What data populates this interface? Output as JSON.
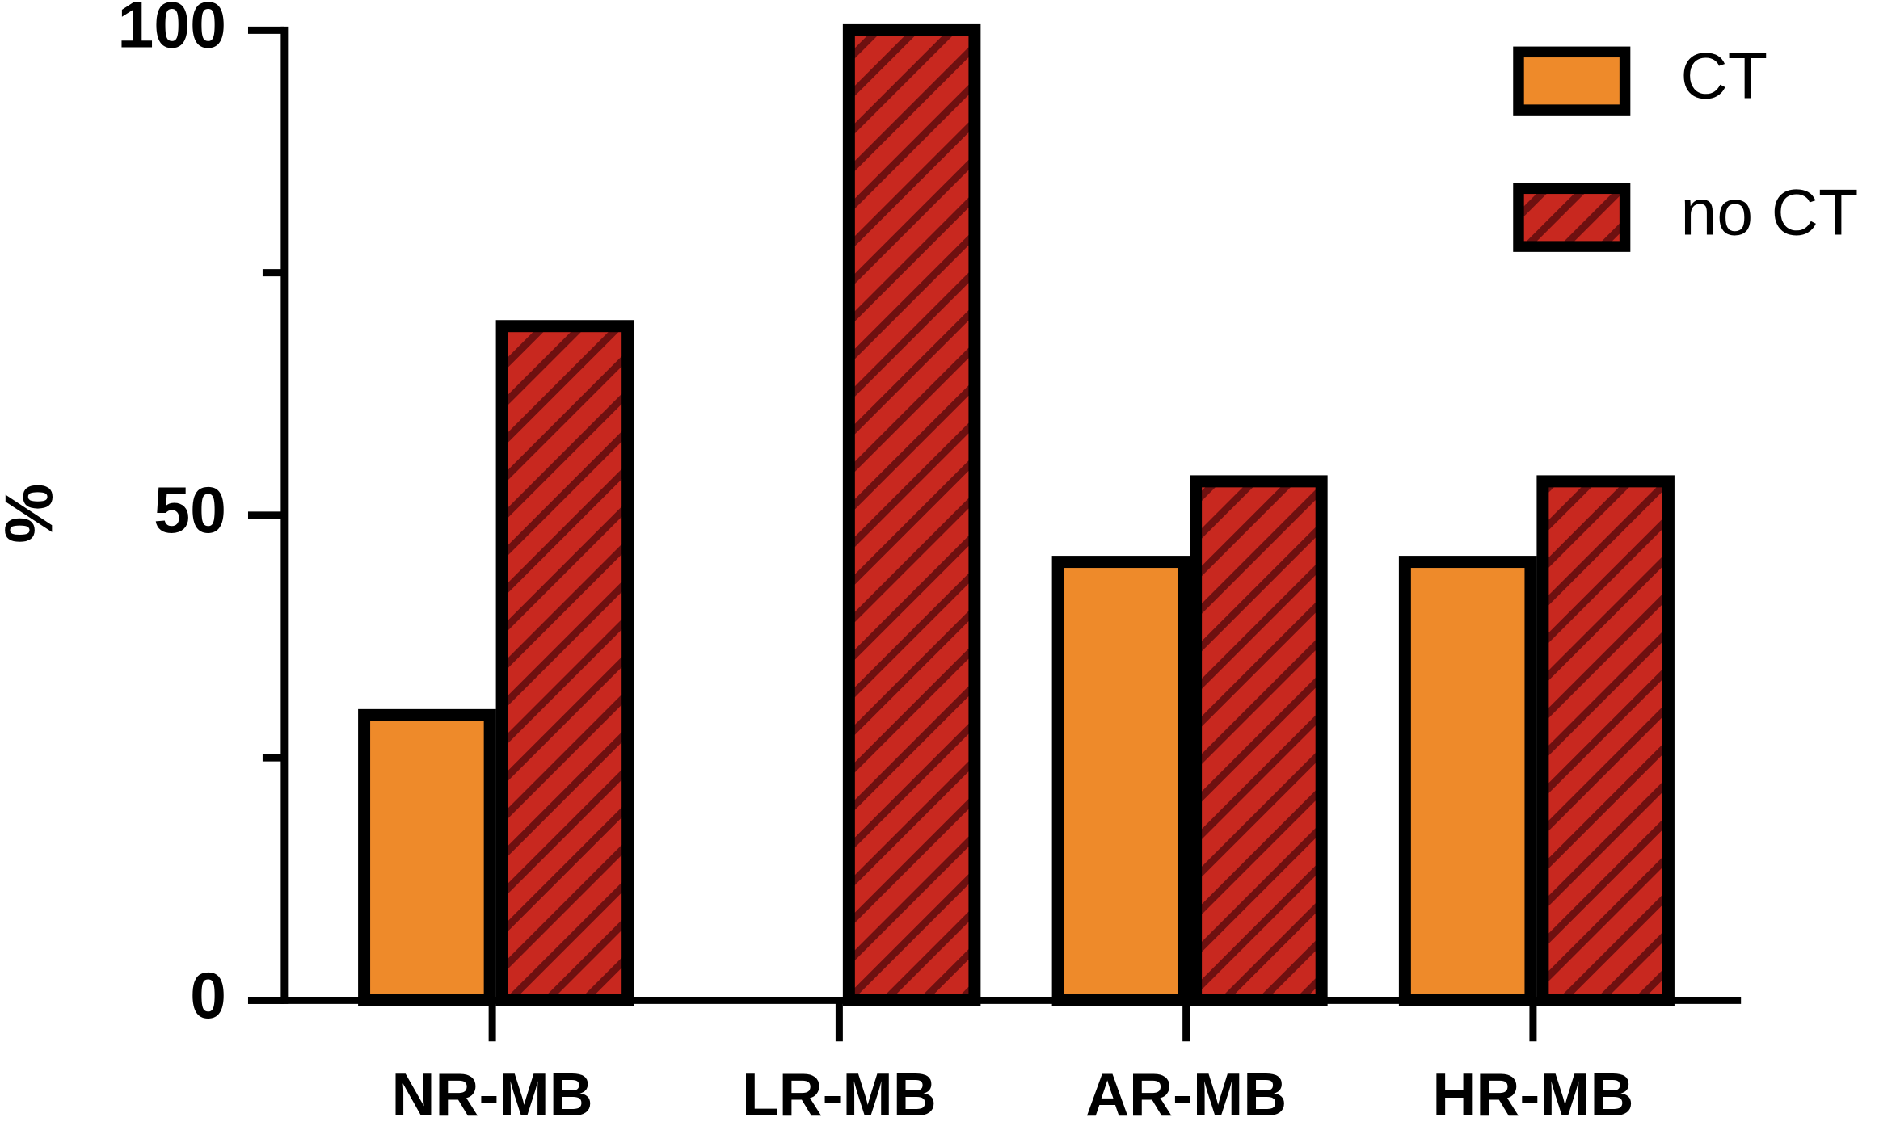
{
  "chart_data": {
    "type": "bar",
    "y_label": "%",
    "categories": [
      "NR-MB",
      "LR-MB",
      "AR-MB",
      "HR-MB"
    ],
    "series": [
      {
        "name": "CT",
        "color": "#ee8a2a",
        "values": [
          29.4,
          0,
          45.2,
          45.2
        ]
      },
      {
        "name": "no CT",
        "color": "#c8281f",
        "hatch_color": "#6e1010",
        "values": [
          69.5,
          100,
          53.5,
          53.5
        ]
      }
    ],
    "ylim": [
      0,
      100
    ],
    "yticks": [
      0,
      50,
      100
    ],
    "minor_yticks": [
      25,
      75
    ],
    "legend": "top-right"
  }
}
